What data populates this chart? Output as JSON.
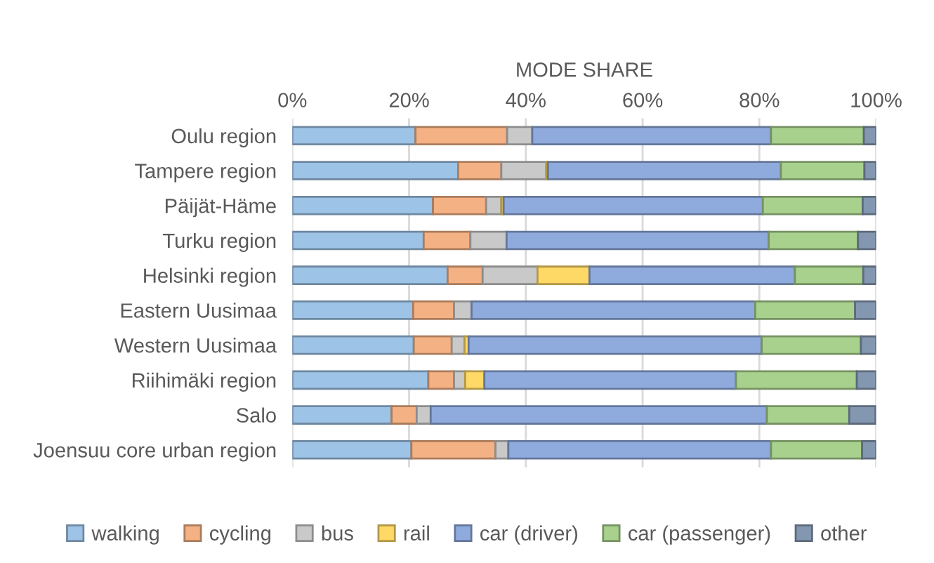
{
  "chart_data": {
    "type": "bar",
    "orientation": "horizontal",
    "stacked": true,
    "xlabel": "MODE SHARE",
    "categories": [
      "Oulu region",
      "Tampere region",
      "Päijät-Häme",
      "Turku region",
      "Helsinki region",
      "Eastern Uusimaa",
      "Western Uusimaa",
      "Riihimäki region",
      "Salo",
      "Joensuu core urban region"
    ],
    "series": [
      {
        "name": "walking",
        "color": "#9dc3e6",
        "values": [
          21.1,
          28.4,
          24.1,
          22.5,
          26.6,
          20.7,
          20.8,
          23.3,
          17.0,
          20.4
        ]
      },
      {
        "name": "cycling",
        "color": "#f4b183",
        "values": [
          15.7,
          7.4,
          9.1,
          8.0,
          6.0,
          7.0,
          6.5,
          4.4,
          4.3,
          14.4
        ]
      },
      {
        "name": "bus",
        "color": "#c9c9c9",
        "values": [
          4.3,
          7.7,
          2.6,
          6.2,
          9.4,
          3.0,
          2.2,
          1.9,
          2.4,
          2.2
        ]
      },
      {
        "name": "rail",
        "color": "#ffd966",
        "values": [
          null,
          0.3,
          0.4,
          null,
          8.9,
          null,
          0.7,
          3.3,
          null,
          null
        ]
      },
      {
        "name": "car (driver)",
        "color": "#8faadc",
        "values": [
          40.9,
          39.9,
          44.4,
          44.9,
          35.2,
          48.6,
          50.2,
          43.1,
          57.6,
          45.0
        ]
      },
      {
        "name": "car (passenger)",
        "color": "#a9d18e",
        "values": [
          15.9,
          14.3,
          17.1,
          15.3,
          11.7,
          17.1,
          17.0,
          20.7,
          14.1,
          15.6
        ]
      },
      {
        "name": "other",
        "color": "#8497b0",
        "values": [
          2.1,
          2.0,
          2.3,
          3.1,
          2.2,
          3.6,
          2.6,
          3.3,
          4.5,
          2.4
        ]
      }
    ],
    "xlim": [
      0,
      100
    ],
    "xticks": [
      {
        "value": 0,
        "label": "0%"
      },
      {
        "value": 20,
        "label": "20%"
      },
      {
        "value": 40,
        "label": "40%"
      },
      {
        "value": 60,
        "label": "60%"
      },
      {
        "value": 80,
        "label": "80%"
      },
      {
        "value": 100,
        "label": "100%"
      }
    ],
    "grid": "x",
    "legend": "bottom"
  }
}
